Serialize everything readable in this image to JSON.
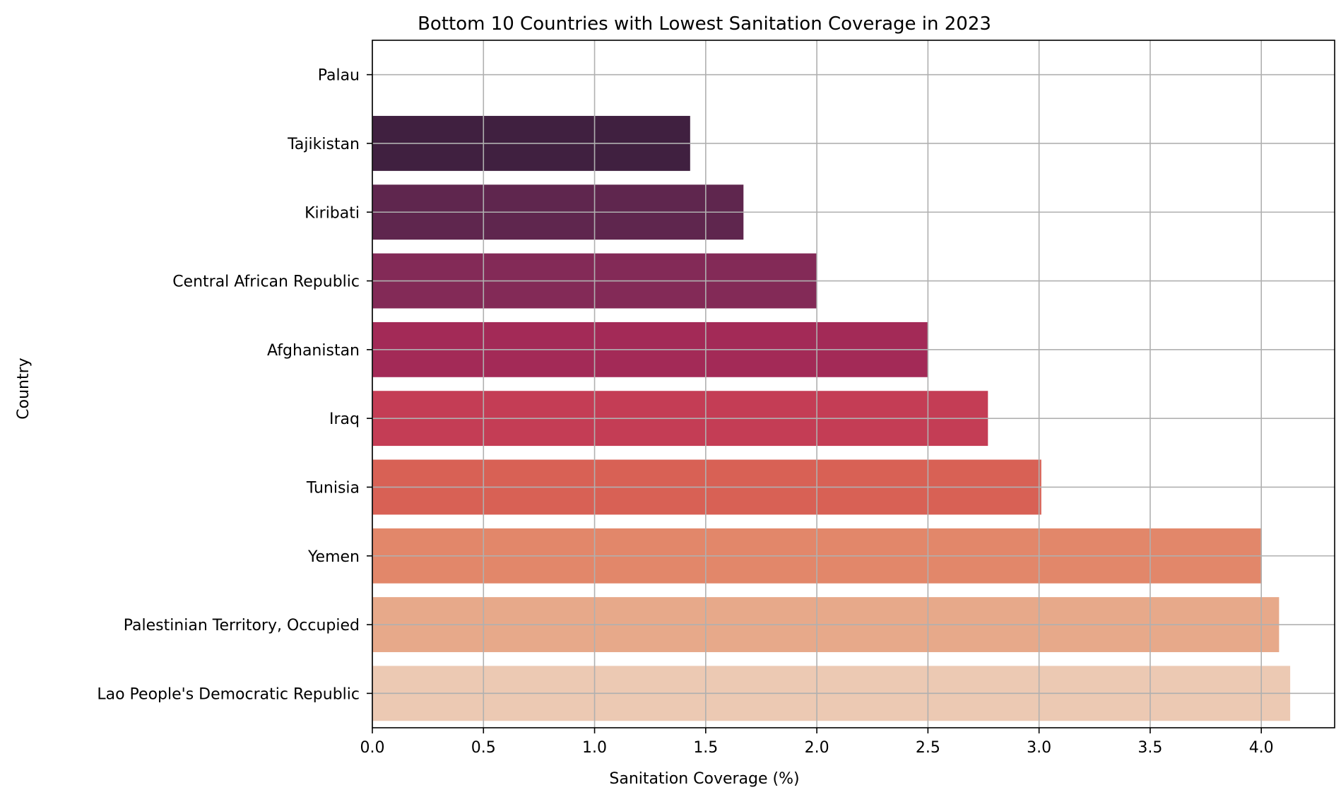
{
  "chart_data": {
    "type": "bar",
    "orientation": "horizontal",
    "title": "Bottom 10 Countries with Lowest Sanitation Coverage in 2023",
    "xlabel": "Sanitation Coverage (%)",
    "ylabel": "Country",
    "xlim": [
      0,
      4.33
    ],
    "xticks": [
      "0.0",
      "0.5",
      "1.0",
      "1.5",
      "2.0",
      "2.5",
      "3.0",
      "3.5",
      "4.0"
    ],
    "grid": true,
    "categories": [
      "Palau",
      "Tajikistan",
      "Kiribati",
      "Central African Republic",
      "Afghanistan",
      "Iraq",
      "Tunisia",
      "Yemen",
      "Palestinian Territory, Occupied",
      "Lao People's Democratic Republic"
    ],
    "values": [
      0.0,
      1.43,
      1.67,
      2.0,
      2.5,
      2.77,
      3.01,
      4.0,
      4.08,
      4.13
    ],
    "colors": [
      "#f5c7a8",
      "#402040",
      "#5f264e",
      "#832a57",
      "#a32a57",
      "#c43d55",
      "#d86155",
      "#e2876a",
      "#e7a98a",
      "#ecc9b3"
    ]
  }
}
